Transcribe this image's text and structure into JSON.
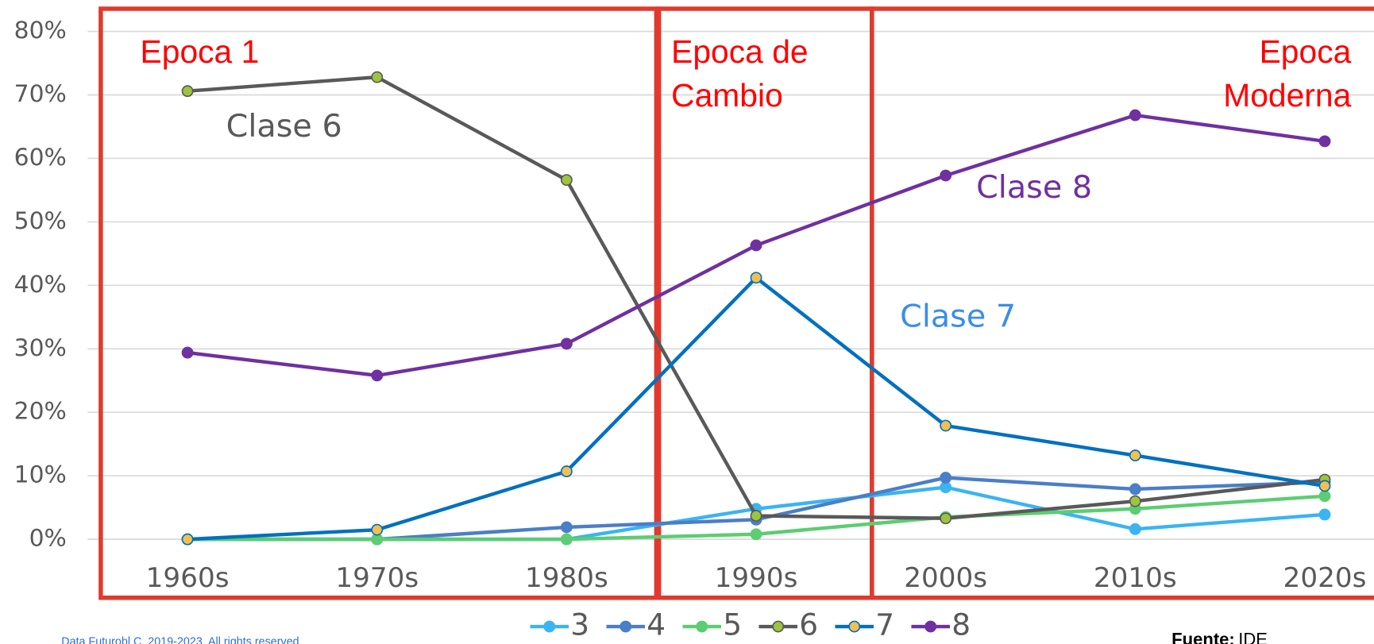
{
  "chart_data": {
    "type": "line",
    "categories": [
      "1960s",
      "1970s",
      "1980s",
      "1990s",
      "2000s",
      "2010s",
      "2020s"
    ],
    "series": [
      {
        "name": "3",
        "color": "#3ab4f2",
        "marker": "#3ab4f2",
        "values": [
          0,
          0,
          0,
          4.8,
          8.2,
          1.6,
          3.9
        ]
      },
      {
        "name": "4",
        "color": "#4a7ec8",
        "marker": "#4a7ec8",
        "values": [
          0,
          0,
          1.9,
          3.1,
          9.7,
          7.9,
          9.0
        ]
      },
      {
        "name": "5",
        "color": "#5ccd72",
        "marker": "#5ccd72",
        "values": [
          0,
          0,
          0,
          0.8,
          3.5,
          4.8,
          6.8
        ]
      },
      {
        "name": "6",
        "color": "#595959",
        "marker": "#9bc53d",
        "values": [
          70.6,
          72.8,
          56.6,
          3.7,
          3.3,
          6.0,
          9.4
        ]
      },
      {
        "name": "7",
        "color": "#0070c0",
        "marker": "#f2c050",
        "values": [
          0,
          1.5,
          10.7,
          41.2,
          17.9,
          13.2,
          8.4
        ]
      },
      {
        "name": "8",
        "color": "#7030a0",
        "marker": "#7030a0",
        "values": [
          29.4,
          25.8,
          30.8,
          46.3,
          57.3,
          66.8,
          62.7
        ]
      }
    ],
    "ylim": [
      0,
      80
    ],
    "yticks": [
      {
        "value": 0,
        "label": "0%"
      },
      {
        "value": 10,
        "label": "10%"
      },
      {
        "value": 20,
        "label": "20%"
      },
      {
        "value": 30,
        "label": "30%"
      },
      {
        "value": 40,
        "label": "40%"
      },
      {
        "value": 50,
        "label": "50%"
      },
      {
        "value": 60,
        "label": "60%"
      },
      {
        "value": 70,
        "label": "70%"
      },
      {
        "value": 80,
        "label": "80%"
      }
    ],
    "grid": true,
    "epochs": [
      [
        "Epoca 1"
      ],
      [
        "Epoca de",
        "Cambio"
      ],
      [
        "Epoca",
        "Moderna"
      ]
    ],
    "series_labels": [
      "Clase 6",
      "Clase 8",
      "Clase 7"
    ],
    "copyright": "Data Futurobl.C. 2019-2023. All rights reserved",
    "source_label": "Fuente:",
    "source": "IDE"
  }
}
